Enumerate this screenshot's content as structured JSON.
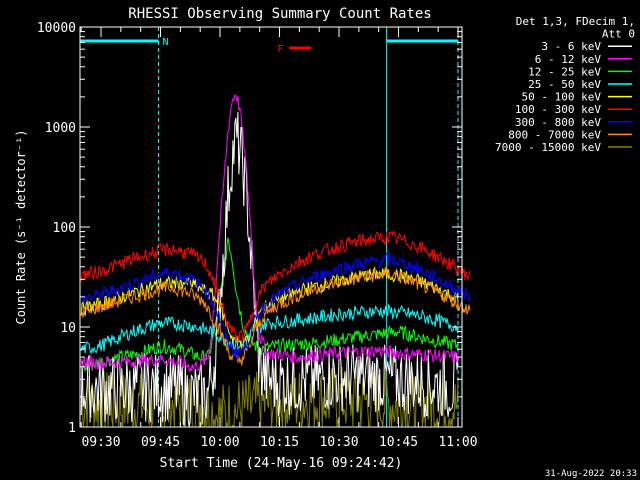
{
  "chart_data": {
    "type": "line",
    "title": "RHESSI Observing Summary Count Rates",
    "xlabel": "Start Time (24-May-16 09:24:42)",
    "ylabel": "Count Rate (s⁻¹ detector⁻¹)",
    "y_scale": "log",
    "ylim": [
      1,
      10000
    ],
    "xlim": [
      "09:24:42",
      "11:01:00"
    ],
    "x_ticks": [
      "09:30",
      "09:45",
      "10:00",
      "10:15",
      "10:30",
      "10:45",
      "11:00"
    ],
    "y_ticks": [
      "1",
      "10",
      "100",
      "1000",
      "10000"
    ],
    "x_tick_minutes": [
      0,
      15,
      30,
      45,
      60,
      75,
      90
    ],
    "x_origin": "09:30",
    "legend_header": [
      "Det 1,3, FDecim 1,",
      "Att 0"
    ],
    "legend_position": "right, outside plot",
    "grid": false,
    "markers": {
      "night": [
        {
          "label": "",
          "start": "09:24:42",
          "end": "09:44:30"
        },
        {
          "label": "",
          "start": "10:42:00",
          "end": "11:00:00"
        }
      ],
      "night_label": "N",
      "flare_label": "F",
      "flare_bar": {
        "start": "10:17:30",
        "end": "10:23:00"
      },
      "night_color": "#00ffff",
      "flare_color": "#ff0000"
    },
    "series": [
      {
        "name": "3 - 6 keV",
        "color": "#ffffff",
        "values": [
          [
            -5,
            2.5
          ],
          [
            0,
            2.4
          ],
          [
            15,
            2.5
          ],
          [
            19,
            2.4
          ],
          [
            23,
            2.1
          ],
          [
            25,
            2.0
          ],
          [
            27,
            2.2
          ],
          [
            28,
            3.5
          ],
          [
            29,
            6
          ],
          [
            30,
            20
          ],
          [
            31,
            60
          ],
          [
            32,
            200
          ],
          [
            33,
            500
          ],
          [
            34,
            750
          ],
          [
            35,
            600
          ],
          [
            36,
            350
          ],
          [
            37,
            150
          ],
          [
            38,
            40
          ],
          [
            39,
            12
          ],
          [
            40,
            4
          ],
          [
            42,
            3
          ],
          [
            45,
            2.8
          ],
          [
            60,
            3.2
          ],
          [
            75,
            3.0
          ],
          [
            90,
            2.5
          ]
        ]
      },
      {
        "name": "6 - 12 keV",
        "color": "#ff00ff",
        "values": [
          [
            -5,
            4.5
          ],
          [
            0,
            4.4
          ],
          [
            10,
            4.6
          ],
          [
            15,
            4.8
          ],
          [
            20,
            4.4
          ],
          [
            23,
            4.0
          ],
          [
            25,
            4.2
          ],
          [
            27,
            5
          ],
          [
            28,
            10
          ],
          [
            29,
            30
          ],
          [
            30,
            100
          ],
          [
            31,
            300
          ],
          [
            32,
            900
          ],
          [
            33,
            1800
          ],
          [
            34,
            2200
          ],
          [
            35,
            1500
          ],
          [
            36,
            700
          ],
          [
            37,
            250
          ],
          [
            38,
            70
          ],
          [
            39,
            18
          ],
          [
            40,
            8
          ],
          [
            42,
            5.5
          ],
          [
            50,
            5
          ],
          [
            60,
            5.5
          ],
          [
            70,
            5.8
          ],
          [
            75,
            5.5
          ],
          [
            90,
            5
          ]
        ]
      },
      {
        "name": "12 - 25 keV",
        "color": "#00ff00",
        "values": [
          [
            -5,
            3.8
          ],
          [
            0,
            4.5
          ],
          [
            10,
            5.5
          ],
          [
            15,
            6.5
          ],
          [
            20,
            6
          ],
          [
            25,
            5
          ],
          [
            27,
            5
          ],
          [
            28,
            7
          ],
          [
            29,
            12
          ],
          [
            30,
            20
          ],
          [
            31,
            35
          ],
          [
            32,
            80
          ],
          [
            33,
            50
          ],
          [
            34,
            25
          ],
          [
            35,
            15
          ],
          [
            36,
            10
          ],
          [
            38,
            7
          ],
          [
            40,
            6
          ],
          [
            45,
            6.5
          ],
          [
            55,
            7
          ],
          [
            65,
            8
          ],
          [
            75,
            9
          ],
          [
            80,
            8
          ],
          [
            90,
            6.5
          ]
        ]
      },
      {
        "name": "25 - 50 keV",
        "color": "#00ffff",
        "values": [
          [
            -5,
            6
          ],
          [
            0,
            6.5
          ],
          [
            8,
            9
          ],
          [
            15,
            11
          ],
          [
            22,
            10.5
          ],
          [
            28,
            9
          ],
          [
            33,
            7
          ],
          [
            36,
            6.5
          ],
          [
            38,
            9
          ],
          [
            42,
            11
          ],
          [
            48,
            11.5
          ],
          [
            55,
            12.5
          ],
          [
            60,
            13.5
          ],
          [
            65,
            14
          ],
          [
            70,
            14.5
          ],
          [
            75,
            14
          ],
          [
            80,
            13
          ],
          [
            85,
            11.5
          ],
          [
            90,
            10
          ]
        ]
      },
      {
        "name": "50 - 100 keV",
        "color": "#ffff00",
        "values": [
          [
            -5,
            15
          ],
          [
            0,
            17
          ],
          [
            8,
            22
          ],
          [
            15,
            27
          ],
          [
            22,
            28
          ],
          [
            28,
            21
          ],
          [
            30,
            16
          ],
          [
            31.5,
            11
          ],
          [
            33,
            8
          ],
          [
            34.5,
            7
          ],
          [
            36,
            7
          ],
          [
            37.5,
            7.5
          ],
          [
            38.5,
            10
          ],
          [
            40,
            15
          ],
          [
            45,
            19
          ],
          [
            50,
            23
          ],
          [
            55,
            26
          ],
          [
            60,
            29
          ],
          [
            65,
            32
          ],
          [
            70,
            34
          ],
          [
            75,
            33
          ],
          [
            80,
            29
          ],
          [
            85,
            24
          ],
          [
            90,
            19
          ]
        ]
      },
      {
        "name": "100 - 300 keV",
        "color": "#ff0000",
        "values": [
          [
            -5,
            33
          ],
          [
            0,
            36
          ],
          [
            8,
            48
          ],
          [
            15,
            58
          ],
          [
            18,
            60
          ],
          [
            22,
            55
          ],
          [
            26,
            45
          ],
          [
            28,
            32
          ],
          [
            30,
            19
          ],
          [
            31.5,
            12
          ],
          [
            33,
            9
          ],
          [
            34.5,
            8
          ],
          [
            36,
            8.5
          ],
          [
            37.5,
            11
          ],
          [
            39,
            18
          ],
          [
            41,
            25
          ],
          [
            45,
            34
          ],
          [
            50,
            45
          ],
          [
            55,
            55
          ],
          [
            60,
            64
          ],
          [
            65,
            72
          ],
          [
            70,
            77
          ],
          [
            73,
            79
          ],
          [
            75,
            76
          ],
          [
            80,
            64
          ],
          [
            85,
            50
          ],
          [
            90,
            38
          ],
          [
            93,
            32
          ]
        ]
      },
      {
        "name": "300 - 800 keV",
        "color": "#0000ff",
        "values": [
          [
            -5,
            19
          ],
          [
            0,
            21
          ],
          [
            8,
            27
          ],
          [
            15,
            34
          ],
          [
            18,
            35
          ],
          [
            22,
            31
          ],
          [
            26,
            25
          ],
          [
            28,
            18
          ],
          [
            30,
            12
          ],
          [
            31.5,
            8
          ],
          [
            33,
            6
          ],
          [
            34.5,
            5.5
          ],
          [
            36,
            6
          ],
          [
            37.5,
            8
          ],
          [
            39,
            12
          ],
          [
            41,
            16
          ],
          [
            45,
            21
          ],
          [
            50,
            27
          ],
          [
            55,
            33
          ],
          [
            60,
            38
          ],
          [
            65,
            43
          ],
          [
            70,
            46
          ],
          [
            73,
            47
          ],
          [
            75,
            45
          ],
          [
            80,
            38
          ],
          [
            85,
            30
          ],
          [
            90,
            23
          ],
          [
            93,
            20
          ]
        ]
      },
      {
        "name": "800 - 7000 keV",
        "color": "#ff8c00",
        "values": [
          [
            -5,
            14
          ],
          [
            0,
            16
          ],
          [
            8,
            20
          ],
          [
            15,
            24
          ],
          [
            18,
            25
          ],
          [
            22,
            22
          ],
          [
            26,
            18
          ],
          [
            28,
            13
          ],
          [
            30,
            9
          ],
          [
            31.5,
            6.5
          ],
          [
            33,
            5
          ],
          [
            34.5,
            4.5
          ],
          [
            36,
            5
          ],
          [
            37.5,
            6.5
          ],
          [
            39,
            9.5
          ],
          [
            41,
            13
          ],
          [
            45,
            17
          ],
          [
            50,
            21
          ],
          [
            55,
            25
          ],
          [
            60,
            28
          ],
          [
            65,
            31
          ],
          [
            70,
            33
          ],
          [
            73,
            34
          ],
          [
            75,
            32
          ],
          [
            80,
            27
          ],
          [
            85,
            22
          ],
          [
            90,
            17
          ],
          [
            93,
            15
          ]
        ]
      },
      {
        "name": "7000 - 15000 keV",
        "color": "#808000",
        "values": [
          [
            -5,
            1.8
          ],
          [
            0,
            1.7
          ],
          [
            15,
            1.6
          ],
          [
            25,
            1.7
          ],
          [
            30,
            1.3
          ],
          [
            35,
            1.5
          ],
          [
            45,
            1.8
          ],
          [
            60,
            1.9
          ],
          [
            75,
            1.7
          ],
          [
            90,
            1.6
          ]
        ]
      }
    ]
  },
  "footer_timestamp": "31-Aug-2022 20:33"
}
